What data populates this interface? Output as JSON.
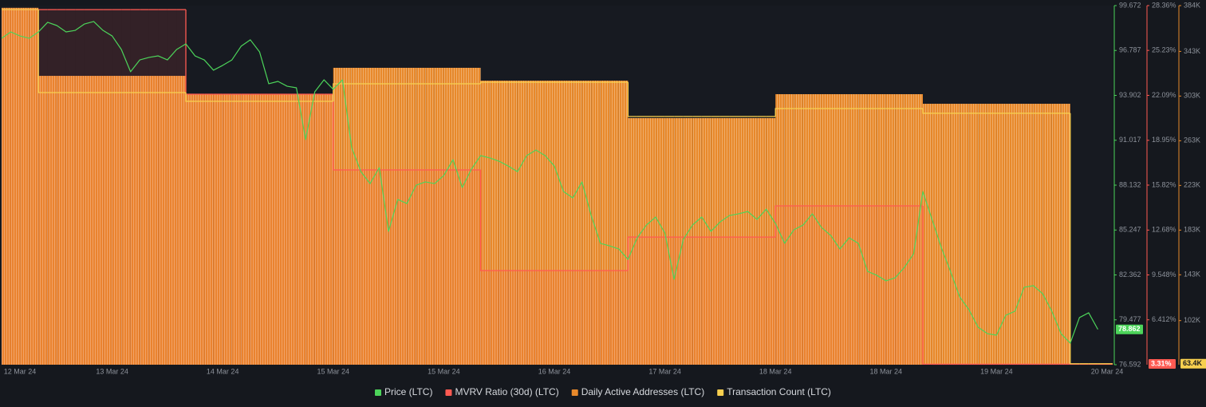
{
  "chart_data": {
    "type": "combo",
    "categories": [
      "12 Mar 24",
      null,
      null,
      null,
      null,
      null,
      null,
      null,
      null,
      null,
      null,
      null,
      "13 Mar 24",
      null,
      null,
      null,
      null,
      null,
      null,
      null,
      null,
      null,
      null,
      null,
      "14 Mar 24",
      null,
      null,
      null,
      null,
      null,
      null,
      null,
      null,
      null,
      null,
      null,
      "15 Mar 24",
      null,
      null,
      null,
      null,
      null,
      null,
      null,
      null,
      null,
      null,
      null,
      "15 Mar 24",
      null,
      null,
      null,
      null,
      null,
      null,
      null,
      null,
      null,
      null,
      null,
      "16 Mar 24",
      null,
      null,
      null,
      null,
      null,
      null,
      null,
      null,
      null,
      null,
      null,
      "17 Mar 24",
      null,
      null,
      null,
      null,
      null,
      null,
      null,
      null,
      null,
      null,
      null,
      "18 Mar 24",
      null,
      null,
      null,
      null,
      null,
      null,
      null,
      null,
      null,
      null,
      null,
      "18 Mar 24",
      null,
      null,
      null,
      null,
      null,
      null,
      null,
      null,
      null,
      null,
      null,
      "19 Mar 24",
      null,
      null,
      null,
      null,
      null,
      null,
      null,
      null,
      null,
      null,
      null,
      "20 Mar 24"
    ],
    "series": [
      {
        "name": "Price (LTC)",
        "color": "#4cd45a",
        "kind": "line",
        "axis": "y",
        "badge": "78.862",
        "values": [
          97.57,
          97.98,
          97.72,
          97.57,
          97.98,
          98.6,
          98.39,
          97.98,
          98.08,
          98.49,
          98.65,
          98.08,
          97.72,
          96.85,
          95.42,
          96.18,
          96.34,
          96.44,
          96.18,
          96.85,
          97.21,
          96.44,
          96.18,
          95.52,
          95.83,
          96.18,
          97.06,
          97.47,
          96.7,
          94.65,
          94.8,
          94.49,
          94.39,
          91.06,
          94.13,
          94.9,
          94.29,
          94.9,
          90.54,
          89.0,
          88.23,
          89.26,
          85.16,
          87.21,
          86.95,
          88.13,
          88.34,
          88.23,
          88.75,
          89.77,
          87.98,
          89.16,
          90.03,
          89.88,
          89.67,
          89.36,
          89.0,
          90.03,
          90.39,
          90.03,
          89.36,
          87.72,
          87.31,
          88.34,
          86.18,
          84.39,
          84.23,
          84.03,
          83.36,
          84.75,
          85.57,
          86.08,
          85.05,
          82.08,
          84.64,
          85.57,
          86.08,
          85.16,
          85.77,
          86.18,
          86.29,
          86.44,
          85.93,
          86.59,
          85.67,
          84.39,
          85.26,
          85.57,
          86.29,
          85.41,
          84.9,
          84.03,
          84.75,
          84.39,
          82.59,
          82.34,
          81.98,
          82.18,
          82.85,
          83.72,
          87.72,
          85.93,
          84.13,
          82.59,
          80.95,
          80.13,
          79.0,
          78.59,
          78.49,
          79.77,
          80.03,
          81.57,
          81.67,
          81.16,
          80.03,
          78.59,
          77.98,
          79.62,
          79.93,
          78.862,
          null
        ]
      },
      {
        "name": "MVRV Ratio (30d) (LTC)",
        "color": "#ff5a52",
        "kind": "step-area",
        "axis": "y2",
        "badge": "3.31%",
        "values": [
          28.08,
          28.08,
          28.08,
          28.08,
          28.08,
          28.08,
          28.08,
          28.08,
          28.08,
          28.08,
          28.08,
          28.08,
          28.08,
          28.08,
          28.08,
          28.08,
          28.08,
          28.08,
          28.08,
          28.08,
          22.17,
          22.17,
          22.17,
          22.17,
          22.17,
          22.17,
          22.17,
          22.17,
          22.17,
          22.17,
          22.17,
          22.17,
          22.17,
          22.17,
          22.17,
          22.17,
          16.88,
          16.88,
          16.88,
          16.88,
          16.88,
          16.88,
          16.88,
          16.88,
          16.88,
          16.88,
          16.88,
          16.88,
          16.88,
          16.88,
          16.88,
          16.88,
          9.85,
          9.85,
          9.85,
          9.85,
          9.85,
          9.85,
          9.85,
          9.85,
          9.85,
          9.85,
          9.85,
          9.85,
          9.85,
          9.85,
          9.85,
          9.85,
          12.19,
          12.19,
          12.19,
          12.19,
          12.19,
          12.19,
          12.19,
          12.19,
          12.19,
          12.19,
          12.19,
          12.19,
          12.19,
          12.19,
          12.19,
          12.19,
          14.37,
          14.37,
          14.37,
          14.37,
          14.37,
          14.37,
          14.37,
          14.37,
          14.37,
          14.37,
          14.37,
          14.37,
          14.37,
          14.37,
          14.37,
          14.37,
          3.31,
          3.31,
          3.31,
          3.31,
          3.31,
          3.31,
          3.31,
          3.31,
          3.31,
          3.31,
          3.31,
          3.31,
          3.31,
          3.31,
          3.31,
          3.31,
          3.31,
          3.31,
          3.31,
          3.31,
          3.31
        ]
      },
      {
        "name": "Daily Active Addresses (LTC)",
        "color": "#e8892b",
        "kind": "bar",
        "axis": "y3",
        "values": [
          382000,
          382000,
          382000,
          382000,
          321100,
          321100,
          321100,
          321100,
          321100,
          321100,
          321100,
          321100,
          321100,
          321100,
          321100,
          321100,
          321100,
          321100,
          321100,
          321100,
          304700,
          304700,
          304700,
          304700,
          304700,
          304700,
          304700,
          304700,
          304700,
          304700,
          304700,
          304700,
          304700,
          304700,
          304700,
          304700,
          328300,
          328300,
          328300,
          328300,
          328300,
          328300,
          328300,
          328300,
          328300,
          328300,
          328300,
          328300,
          328300,
          328300,
          328300,
          328300,
          316800,
          316800,
          316800,
          316800,
          316800,
          316800,
          316800,
          316800,
          316800,
          316800,
          316800,
          316800,
          316800,
          316800,
          316800,
          316800,
          283300,
          283300,
          283300,
          283300,
          283300,
          283300,
          283300,
          283300,
          283300,
          283300,
          283300,
          283300,
          283300,
          283300,
          283300,
          283300,
          304700,
          304700,
          304700,
          304700,
          304700,
          304700,
          304700,
          304700,
          304700,
          304700,
          304700,
          304700,
          304700,
          304700,
          304700,
          304700,
          296100,
          296100,
          296100,
          296100,
          296100,
          296100,
          296100,
          296100,
          296100,
          296100,
          296100,
          296100,
          296100,
          296100,
          296100,
          296100,
          null,
          null,
          null,
          null,
          null
        ]
      },
      {
        "name": "Transaction Count (LTC)",
        "color": "#f7cf4f",
        "kind": "step",
        "axis": "y3",
        "badge": "63.4K",
        "values": [
          380400,
          380400,
          380400,
          380400,
          306100,
          306100,
          306100,
          306100,
          306100,
          306100,
          306100,
          306100,
          306100,
          306100,
          306100,
          306100,
          306100,
          306100,
          306100,
          306100,
          298300,
          298300,
          298300,
          298300,
          298300,
          298300,
          298300,
          298300,
          298300,
          298300,
          298300,
          298300,
          298300,
          298300,
          298300,
          298300,
          314000,
          314000,
          314000,
          314000,
          314000,
          314000,
          314000,
          314000,
          314000,
          314000,
          314000,
          314000,
          314000,
          314000,
          314000,
          314000,
          315400,
          315400,
          315400,
          315400,
          315400,
          315400,
          315400,
          315400,
          315400,
          315400,
          315400,
          315400,
          315400,
          315400,
          315400,
          315400,
          284700,
          284700,
          284700,
          284700,
          284700,
          284700,
          284700,
          284700,
          284700,
          284700,
          284700,
          284700,
          284700,
          284700,
          284700,
          284700,
          291800,
          291800,
          291800,
          291800,
          291800,
          291800,
          291800,
          291800,
          291800,
          291800,
          291800,
          291800,
          291800,
          291800,
          291800,
          291800,
          287600,
          287600,
          287600,
          287600,
          287600,
          287600,
          287600,
          287600,
          287600,
          287600,
          287600,
          287600,
          287600,
          287600,
          287600,
          287600,
          63400,
          63400,
          63400,
          63400,
          63400
        ]
      }
    ],
    "ylim": [
      76.592,
      99.672
    ],
    "yticks": [
      99.672,
      96.787,
      93.902,
      91.017,
      88.132,
      85.247,
      82.362,
      79.477,
      76.592
    ],
    "y2lim": [
      3.276,
      28.36
    ],
    "y2ticks": [
      {
        "value": 28.36,
        "label": "28.36%"
      },
      {
        "value": 25.23,
        "label": "25.23%"
      },
      {
        "value": 22.09,
        "label": "22.09%"
      },
      {
        "value": 18.95,
        "label": "18.95%"
      },
      {
        "value": 15.82,
        "label": "15.82%"
      },
      {
        "value": 12.68,
        "label": "12.68%"
      },
      {
        "value": 9.548,
        "label": "9.548%"
      },
      {
        "value": 6.412,
        "label": "6.412%"
      }
    ],
    "y3lim": [
      62500,
      384000
    ],
    "y3ticks": [
      {
        "value": 384000,
        "label": "384K"
      },
      {
        "value": 343000,
        "label": "343K"
      },
      {
        "value": 303000,
        "label": "303K"
      },
      {
        "value": 263000,
        "label": "263K"
      },
      {
        "value": 223000,
        "label": "223K"
      },
      {
        "value": 183000,
        "label": "183K"
      },
      {
        "value": 143000,
        "label": "143K"
      },
      {
        "value": 102000,
        "label": "102K"
      }
    ],
    "grid": false
  }
}
